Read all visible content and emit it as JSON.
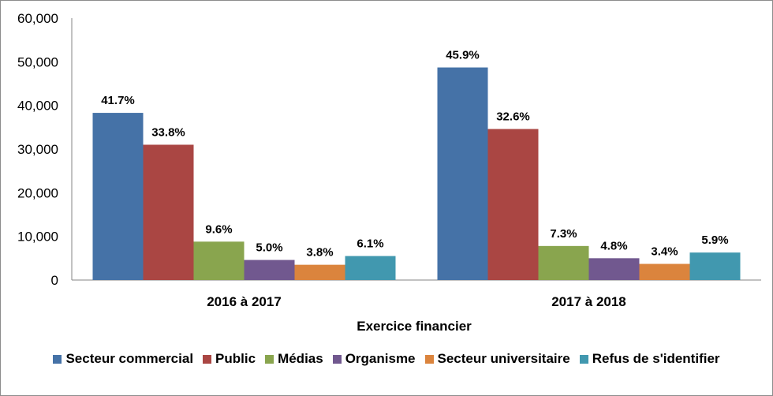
{
  "chart_data": {
    "type": "bar",
    "xlabel": "Exercice financier",
    "ylabel": "",
    "ylim": [
      0,
      60000
    ],
    "yticks": [
      "0",
      "10,000",
      "20,000",
      "30,000",
      "40,000",
      "50,000",
      "60,000"
    ],
    "grid": false,
    "legend_position": "bottom",
    "categories": [
      "2016 à 2017",
      "2017 à 2018"
    ],
    "series": [
      {
        "name": "Secteur commercial",
        "color": "#4572A7",
        "values": [
          38300,
          48700
        ],
        "labels": [
          "41.7%",
          "45.9%"
        ]
      },
      {
        "name": "Public",
        "color": "#AA4643",
        "values": [
          31000,
          34600
        ],
        "labels": [
          "33.8%",
          "32.6%"
        ]
      },
      {
        "name": "Médias",
        "color": "#89A54E",
        "values": [
          8800,
          7800
        ],
        "labels": [
          "9.6%",
          "7.3%"
        ]
      },
      {
        "name": "Organisme",
        "color": "#71588F",
        "values": [
          4600,
          5000
        ],
        "labels": [
          "5.0%",
          "4.8%"
        ]
      },
      {
        "name": "Secteur universitaire",
        "color": "#DB843D",
        "values": [
          3500,
          3700
        ],
        "labels": [
          "3.8%",
          "3.4%"
        ]
      },
      {
        "name": "Refus de s'identifier",
        "color": "#4198AF",
        "values": [
          5500,
          6300
        ],
        "labels": [
          "6.1%",
          "5.9%"
        ]
      }
    ]
  }
}
